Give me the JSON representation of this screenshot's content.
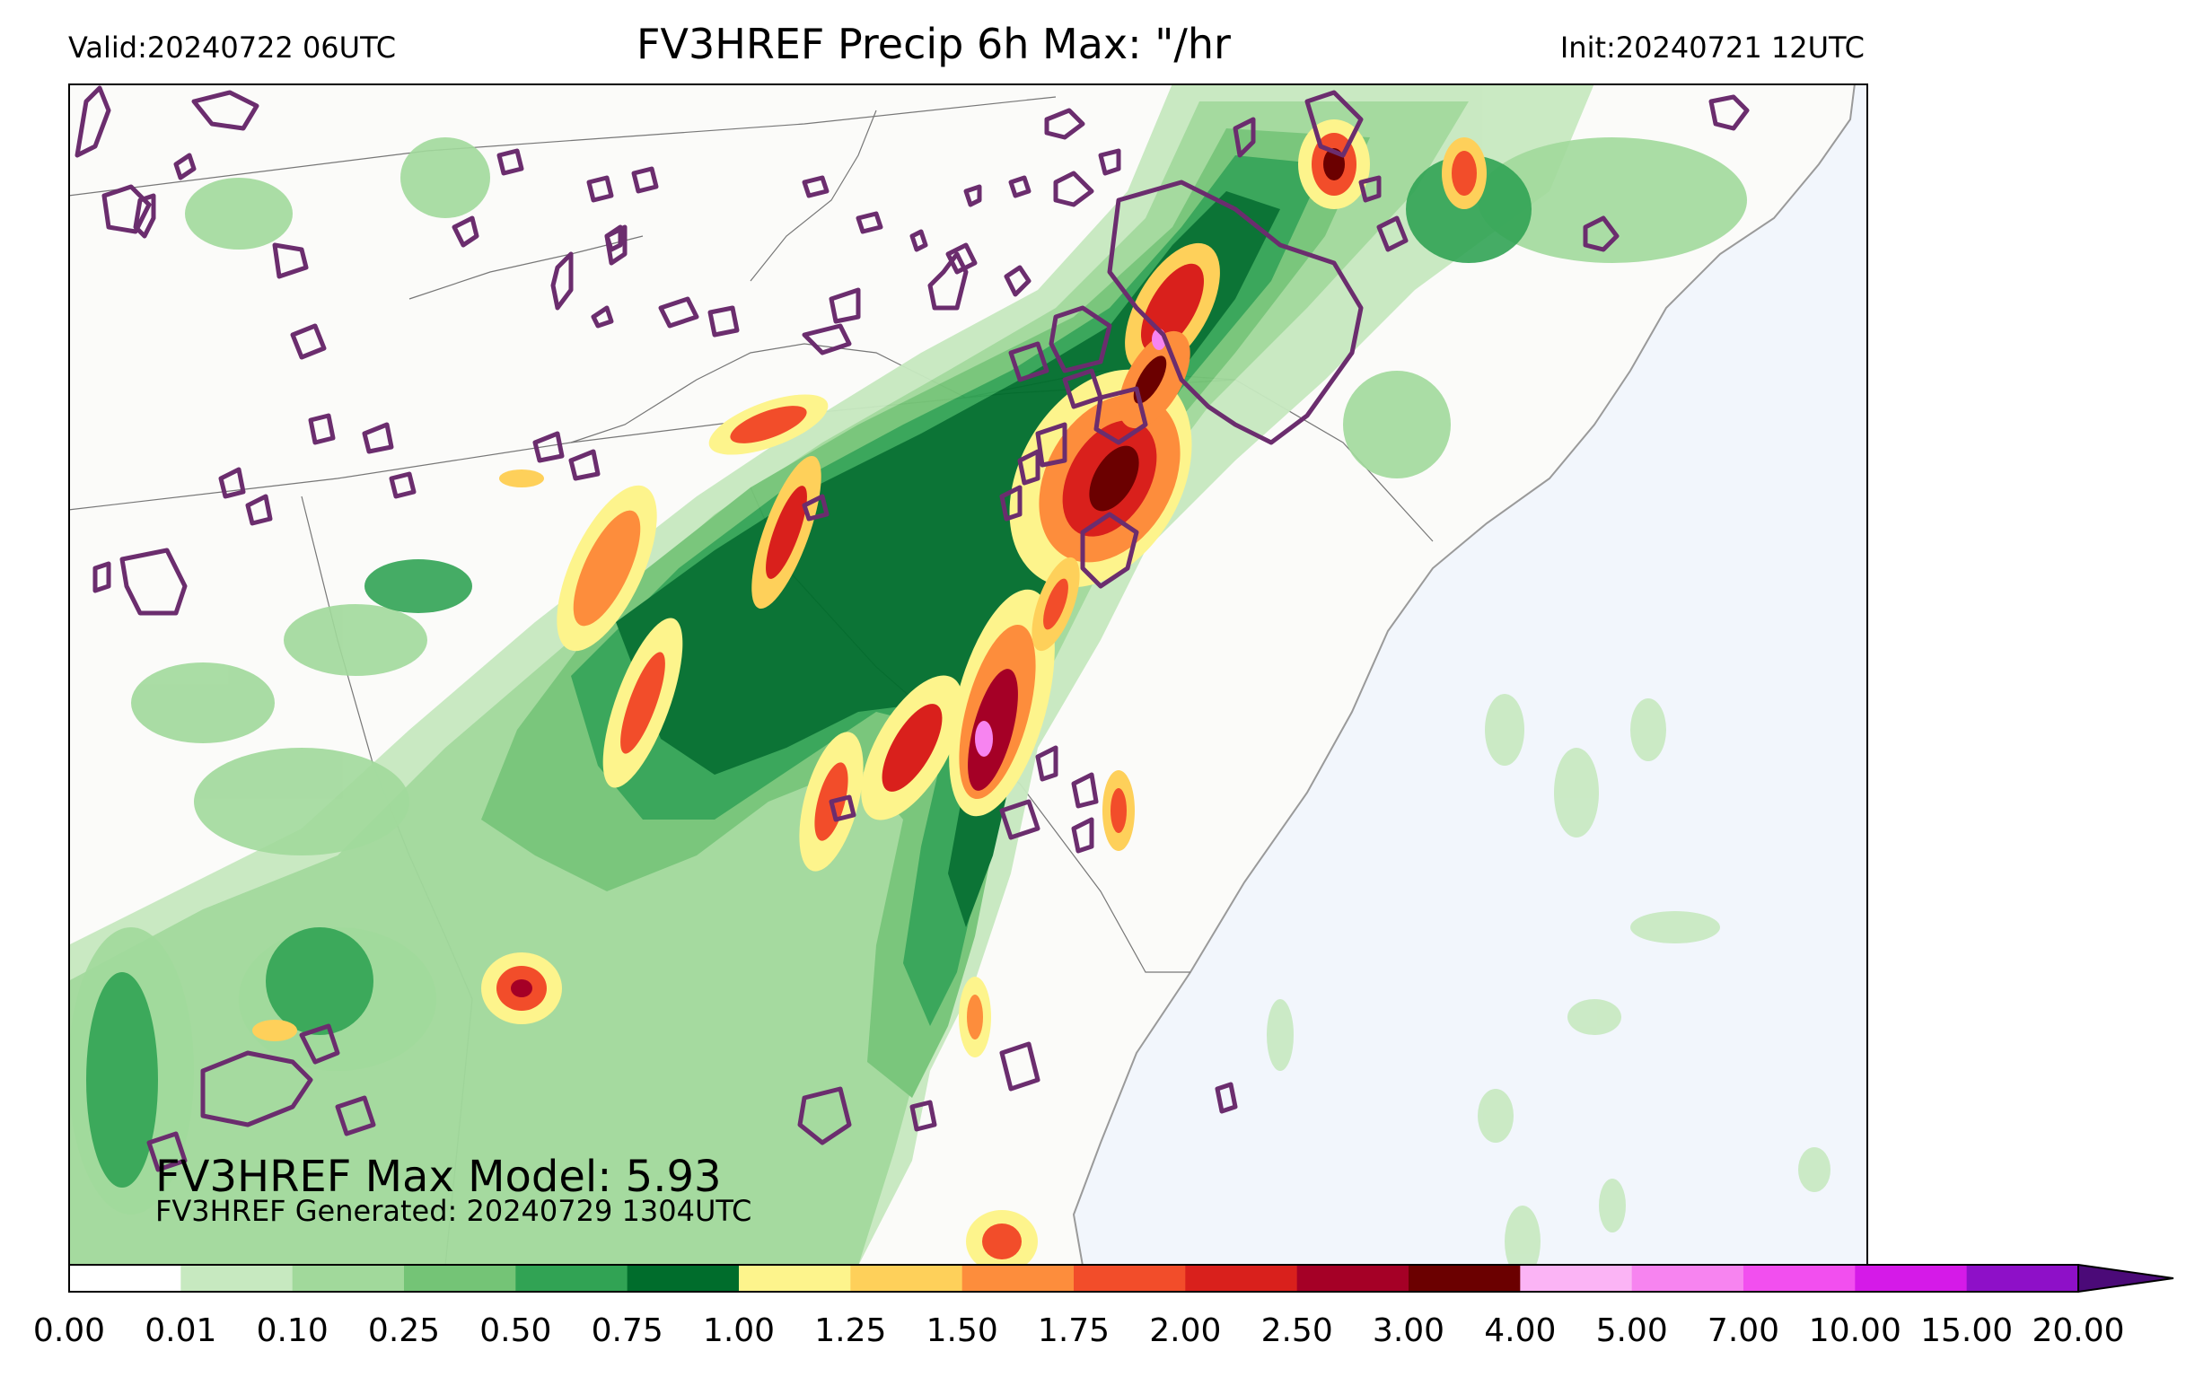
{
  "header": {
    "valid": "Valid:20240722 06UTC",
    "title": "FV3HREF Precip 6h Max: \"/hr",
    "init": "Init:20240721 12UTC"
  },
  "annotations": {
    "max_model": "FV3HREF Max Model: 5.93",
    "generated": "FV3HREF Generated: 20240729 1304UTC"
  },
  "colorbar": {
    "ticks": [
      "0.00",
      "0.01",
      "0.10",
      "0.25",
      "0.50",
      "0.75",
      "1.00",
      "1.25",
      "1.50",
      "1.75",
      "2.00",
      "2.50",
      "3.00",
      "4.00",
      "5.00",
      "7.00",
      "10.00",
      "15.00",
      "20.00"
    ],
    "colors": [
      "#ffffff",
      "#c7e9c0",
      "#a1d99b",
      "#74c476",
      "#31a354",
      "#006d2c",
      "#fdf48c",
      "#fed05a",
      "#fd8d3c",
      "#f24d2a",
      "#d9201c",
      "#a50026",
      "#6b0000",
      "#fbb4f5",
      "#f784f0",
      "#f24fef",
      "#d51ae8",
      "#8e10c8"
    ],
    "extend_color": "#4b0a78"
  },
  "map": {
    "ocean_color": "#f2f6fc",
    "land_color": "#fbfbf9",
    "contour_color": "#6b2d6e"
  }
}
